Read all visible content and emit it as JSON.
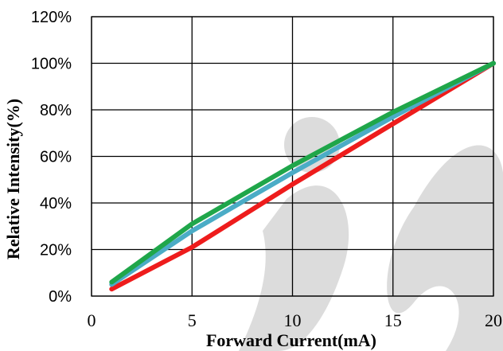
{
  "chart_data": {
    "type": "line",
    "xlabel": "Forward Current(mA)",
    "ylabel": "Relative  Intensity(%)",
    "xlim": [
      0,
      20
    ],
    "ylim": [
      0,
      120
    ],
    "x_ticks": [
      0,
      5,
      10,
      15,
      20
    ],
    "x_tick_labels": [
      "0",
      "5",
      "10",
      "15",
      "20"
    ],
    "y_ticks": [
      0,
      20,
      40,
      60,
      80,
      100,
      120
    ],
    "y_tick_labels": [
      "0%",
      "20%",
      "40%",
      "60%",
      "80%",
      "100%",
      "120%"
    ],
    "grid": true,
    "legend": "none",
    "series": [
      {
        "color": "#ee1c1c",
        "x": [
          1,
          5,
          10,
          15,
          20
        ],
        "y": [
          3,
          21,
          48,
          74,
          100
        ]
      },
      {
        "color": "#4bacc6",
        "x": [
          1,
          5,
          10,
          15,
          20
        ],
        "y": [
          5,
          28,
          53,
          77,
          100
        ]
      },
      {
        "color": "#1fa64a",
        "x": [
          1,
          5,
          10,
          15,
          20
        ],
        "y": [
          6,
          31,
          56,
          79,
          100
        ]
      }
    ]
  }
}
